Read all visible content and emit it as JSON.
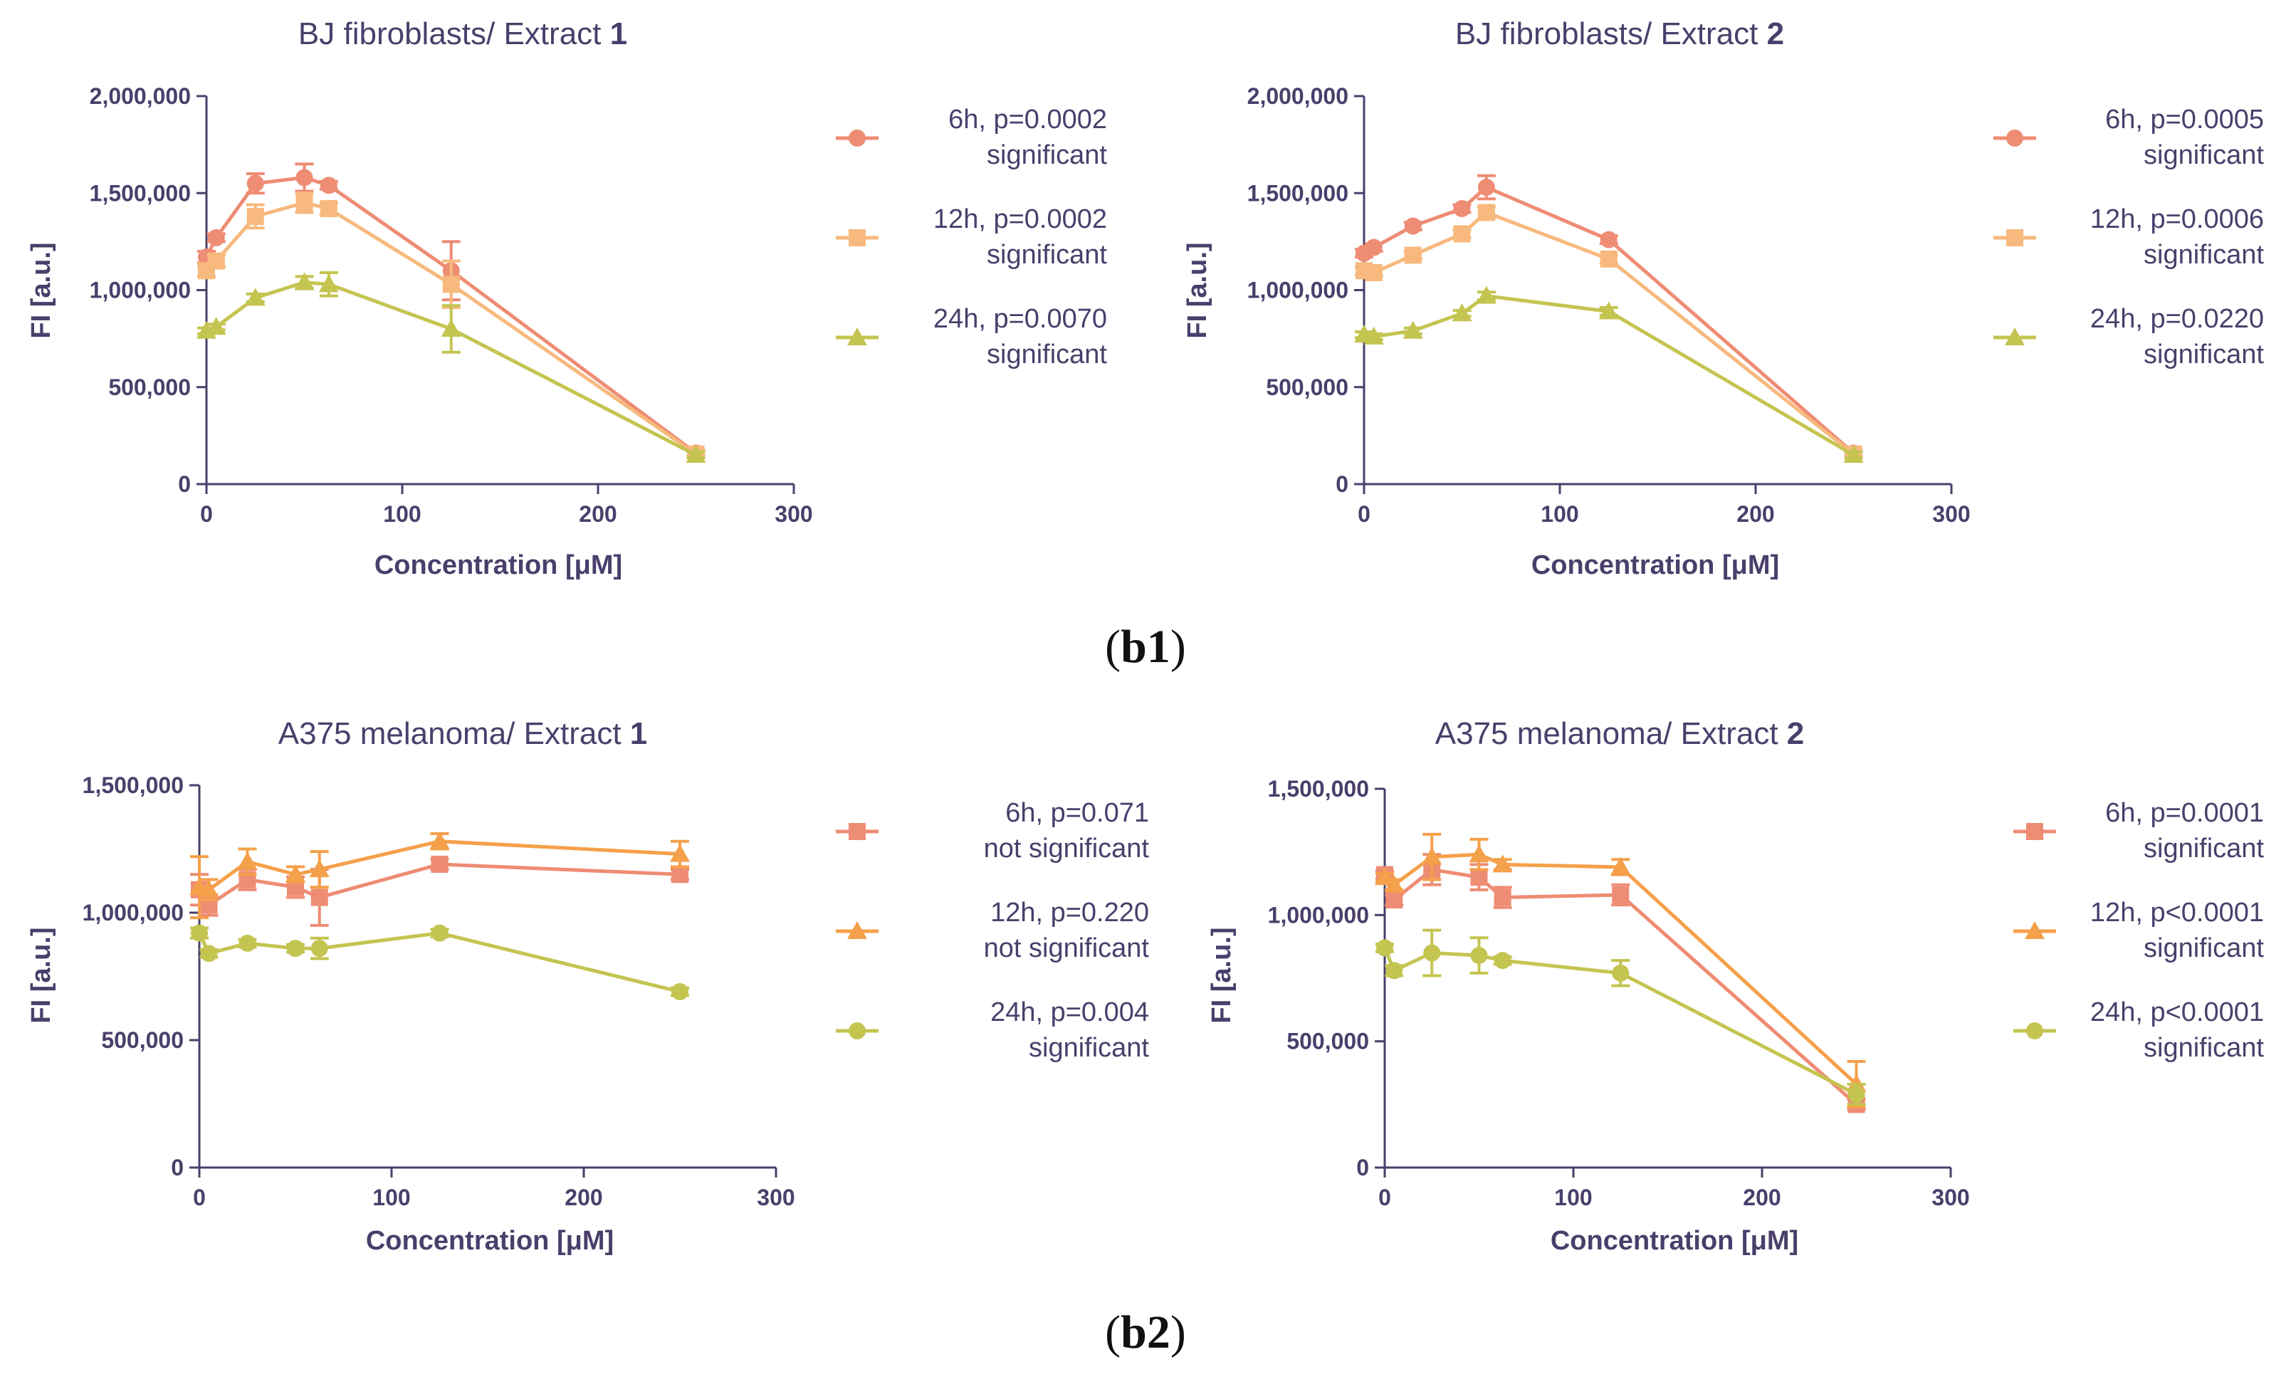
{
  "panel_labels": [
    {
      "prefix": "(",
      "bold": "b1",
      "suffix": ")"
    },
    {
      "prefix": "(",
      "bold": "b2",
      "suffix": ")"
    }
  ],
  "colors": {
    "6h": "#ee8c74",
    "12h_b1": "#f7b97d",
    "12h_b2": "#f5a04a",
    "24h": "#c4c451",
    "axis": "#4a3f6b"
  },
  "chart_data": [
    {
      "type": "line",
      "title_prefix": "BJ fibroblasts/ Extract ",
      "title_bold": "1",
      "xlabel": "Concentration [μM]",
      "ylabel": "FI [a.u.]",
      "xlim": [
        0,
        300
      ],
      "ylim": [
        0,
        2000000
      ],
      "xticks": [
        0,
        100,
        200,
        300
      ],
      "xtick_labels": [
        "0",
        "100",
        "200",
        "300"
      ],
      "yticks": [
        0,
        500000,
        1000000,
        1500000,
        2000000
      ],
      "ytick_labels": [
        "0",
        "500,000",
        "1,000,000",
        "1,500,000",
        "2,000,000"
      ],
      "series": [
        {
          "name": "6h",
          "legend_line1": "6h, p=0.0002",
          "legend_line2": "significant",
          "marker": "circle",
          "color_key": "6h",
          "x": [
            0,
            5,
            25,
            50,
            62.5,
            125,
            250
          ],
          "y": [
            1170000,
            1270000,
            1550000,
            1580000,
            1540000,
            1100000,
            160000
          ],
          "err": [
            30000,
            20000,
            50000,
            70000,
            20000,
            150000,
            15000
          ]
        },
        {
          "name": "12h",
          "legend_line1": "12h, p=0.0002",
          "legend_line2": "significant",
          "marker": "square",
          "color_key": "12h_b1",
          "x": [
            0,
            5,
            25,
            50,
            62.5,
            125,
            250
          ],
          "y": [
            1100000,
            1150000,
            1380000,
            1450000,
            1420000,
            1030000,
            155000
          ],
          "err": [
            30000,
            30000,
            60000,
            50000,
            30000,
            120000,
            15000
          ]
        },
        {
          "name": "24h",
          "legend_line1": "24h, p=0.0070",
          "legend_line2": "significant",
          "marker": "triangle",
          "color_key": "24h",
          "x": [
            0,
            5,
            25,
            50,
            62.5,
            125,
            250
          ],
          "y": [
            790000,
            810000,
            960000,
            1040000,
            1030000,
            800000,
            150000
          ],
          "err": [
            15000,
            15000,
            20000,
            30000,
            60000,
            120000,
            15000
          ]
        }
      ]
    },
    {
      "type": "line",
      "title_prefix": "BJ fibroblasts/ Extract ",
      "title_bold": "2",
      "xlabel": "Concentration [μM]",
      "ylabel": "FI [a.u.]",
      "xlim": [
        0,
        300
      ],
      "ylim": [
        0,
        2000000
      ],
      "xticks": [
        0,
        100,
        200,
        300
      ],
      "xtick_labels": [
        "0",
        "100",
        "200",
        "300"
      ],
      "yticks": [
        0,
        500000,
        1000000,
        1500000,
        2000000
      ],
      "ytick_labels": [
        "0",
        "500,000",
        "1,000,000",
        "1,500,000",
        "2,000,000"
      ],
      "series": [
        {
          "name": "6h",
          "legend_line1": "6h, p=0.0005",
          "legend_line2": "significant",
          "marker": "circle",
          "color_key": "6h",
          "x": [
            0,
            5,
            25,
            50,
            62.5,
            125,
            250
          ],
          "y": [
            1190000,
            1220000,
            1330000,
            1420000,
            1530000,
            1260000,
            160000
          ],
          "err": [
            20000,
            20000,
            20000,
            20000,
            60000,
            20000,
            15000
          ]
        },
        {
          "name": "12h",
          "legend_line1": "12h, p=0.0006",
          "legend_line2": "significant",
          "marker": "square",
          "color_key": "12h_b1",
          "x": [
            0,
            5,
            25,
            50,
            62.5,
            125,
            250
          ],
          "y": [
            1100000,
            1090000,
            1180000,
            1290000,
            1400000,
            1160000,
            155000
          ],
          "err": [
            20000,
            20000,
            20000,
            20000,
            30000,
            20000,
            15000
          ]
        },
        {
          "name": "24h",
          "legend_line1": "24h, p=0.0220",
          "legend_line2": "significant",
          "marker": "triangle",
          "color_key": "24h",
          "x": [
            0,
            5,
            25,
            50,
            62.5,
            125,
            250
          ],
          "y": [
            770000,
            760000,
            790000,
            880000,
            970000,
            890000,
            150000
          ],
          "err": [
            15000,
            15000,
            15000,
            15000,
            20000,
            20000,
            15000
          ]
        }
      ]
    },
    {
      "type": "line",
      "title_prefix": "A375 melanoma/ Extract ",
      "title_bold": "1",
      "xlabel": "Concentration [μM]",
      "ylabel": "FI [a.u.]",
      "xlim": [
        0,
        300
      ],
      "ylim": [
        0,
        1500000
      ],
      "xticks": [
        0,
        100,
        200,
        300
      ],
      "xtick_labels": [
        "0",
        "100",
        "200",
        "300"
      ],
      "yticks": [
        0,
        500000,
        1000000,
        1500000
      ],
      "ytick_labels": [
        "0",
        "500,000",
        "1,000,000",
        "1,500,000"
      ],
      "series": [
        {
          "name": "6h",
          "legend_line1": "6h, p=0.071",
          "legend_line2": "not significant",
          "marker": "square",
          "color_key": "6h",
          "x": [
            0,
            5,
            25,
            50,
            62.5,
            125,
            250
          ],
          "y": [
            1090000,
            1030000,
            1130000,
            1100000,
            1060000,
            1190000,
            1150000
          ],
          "err": [
            60000,
            40000,
            40000,
            40000,
            110000,
            20000,
            20000
          ]
        },
        {
          "name": "12h",
          "legend_line1": "12h, p=0.220",
          "legend_line2": "not significant",
          "marker": "triangle",
          "color_key": "12h_b2",
          "x": [
            0,
            5,
            25,
            50,
            62.5,
            125,
            250
          ],
          "y": [
            1100000,
            1090000,
            1200000,
            1150000,
            1170000,
            1280000,
            1230000
          ],
          "err": [
            120000,
            40000,
            50000,
            30000,
            70000,
            30000,
            50000
          ]
        },
        {
          "name": "24h",
          "legend_line1": "24h, p=0.004",
          "legend_line2": "significant",
          "marker": "circle",
          "color_key": "24h",
          "x": [
            0,
            5,
            25,
            50,
            62.5,
            125,
            250
          ],
          "y": [
            920000,
            840000,
            880000,
            860000,
            860000,
            920000,
            690000
          ],
          "err": [
            20000,
            15000,
            15000,
            15000,
            40000,
            15000,
            15000
          ]
        }
      ]
    },
    {
      "type": "line",
      "title_prefix": "A375 melanoma/ Extract ",
      "title_bold": "2",
      "xlabel": "Concentration [μM]",
      "ylabel": "FI [a.u.]",
      "xlim": [
        0,
        300
      ],
      "ylim": [
        0,
        1500000
      ],
      "xticks": [
        0,
        100,
        200,
        300
      ],
      "xtick_labels": [
        "0",
        "100",
        "200",
        "300"
      ],
      "yticks": [
        0,
        500000,
        1000000,
        1500000
      ],
      "ytick_labels": [
        "0",
        "500,000",
        "1,000,000",
        "1,500,000"
      ],
      "series": [
        {
          "name": "6h",
          "legend_line1": "6h, p=0.0001",
          "legend_line2": "significant",
          "marker": "square",
          "color_key": "6h",
          "x": [
            0,
            5,
            25,
            50,
            62.5,
            125,
            250
          ],
          "y": [
            1160000,
            1060000,
            1180000,
            1150000,
            1070000,
            1080000,
            250000
          ],
          "err": [
            15000,
            20000,
            60000,
            50000,
            40000,
            40000,
            20000
          ]
        },
        {
          "name": "12h",
          "legend_line1": "12h, p<0.0001",
          "legend_line2": "significant",
          "marker": "triangle",
          "color_key": "12h_b2",
          "x": [
            0,
            5,
            25,
            50,
            62.5,
            125,
            250
          ],
          "y": [
            1150000,
            1120000,
            1230000,
            1240000,
            1200000,
            1190000,
            330000
          ],
          "err": [
            15000,
            20000,
            90000,
            60000,
            20000,
            30000,
            90000
          ]
        },
        {
          "name": "24h",
          "legend_line1": "24h, p<0.0001",
          "legend_line2": "significant",
          "marker": "circle",
          "color_key": "24h",
          "x": [
            0,
            5,
            25,
            50,
            62.5,
            125,
            250
          ],
          "y": [
            870000,
            780000,
            850000,
            840000,
            820000,
            770000,
            290000
          ],
          "err": [
            15000,
            20000,
            90000,
            70000,
            15000,
            50000,
            40000
          ]
        }
      ]
    }
  ]
}
